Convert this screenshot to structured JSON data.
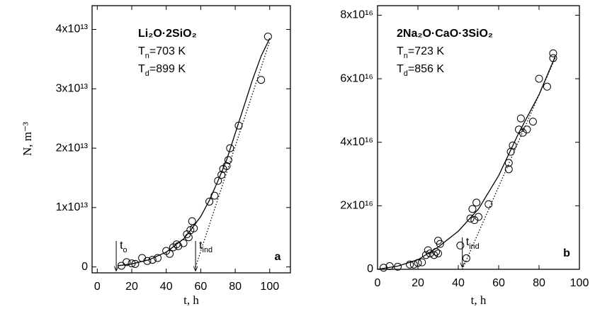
{
  "chart_data": [
    {
      "type": "scatter",
      "y_label": "N, m⁻³",
      "x_label": "t, h",
      "panel": "a",
      "xlim": [
        -3,
        112
      ],
      "ylim": [
        -1000000000000.0,
        44000000000000.0
      ],
      "xticks": [
        0,
        20,
        40,
        60,
        80,
        100
      ],
      "yticks": [
        0,
        {
          "value": 10000000000000.0,
          "label": "1x10¹³"
        },
        {
          "value": 20000000000000.0,
          "label": "2x10¹³"
        },
        {
          "value": 30000000000000.0,
          "label": "3x10¹³"
        },
        {
          "value": 40000000000000.0,
          "label": "4x10¹³"
        }
      ],
      "texts": [
        {
          "parts": [
            {
              "text": "Li₂O·2SiO₂"
            }
          ],
          "bold": true
        },
        {
          "parts": [
            {
              "text": "T"
            },
            {
              "sub": "n"
            },
            {
              "text": "=703 K"
            }
          ]
        },
        {
          "parts": [
            {
              "text": "T"
            },
            {
              "sub": "d"
            },
            {
              "text": "=899 K"
            }
          ]
        }
      ],
      "annotations": [
        {
          "x": 11,
          "parts": [
            {
              "text": "t"
            },
            {
              "sub": "o"
            }
          ]
        },
        {
          "x": 57,
          "parts": [
            {
              "text": "t"
            },
            {
              "sub": "ind"
            }
          ]
        }
      ],
      "series": [
        {
          "type": "scatter",
          "color": "#000000",
          "x": [
            14,
            17,
            20,
            22,
            26,
            29,
            32,
            35,
            40,
            42,
            44,
            46,
            47,
            50,
            52,
            53,
            54,
            55,
            56,
            65,
            68,
            70,
            72,
            73,
            75,
            76,
            77,
            82,
            95,
            99
          ],
          "values": [
            200000000000.0,
            800000000000.0,
            600000000000.0,
            500000000000.0,
            1500000000000.0,
            1000000000000.0,
            1200000000000.0,
            1500000000000.0,
            2700000000000.0,
            2200000000000.0,
            3300000000000.0,
            3800000000000.0,
            3500000000000.0,
            4000000000000.0,
            5500000000000.0,
            5000000000000.0,
            6200000000000.0,
            7700000000000.0,
            6500000000000.0,
            11000000000000.0,
            12000000000000.0,
            14500000000000.0,
            15500000000000.0,
            16500000000000.0,
            17000000000000.0,
            18000000000000.0,
            20000000000000.0,
            23800000000000.0,
            31500000000000.0,
            38800000000000.0
          ]
        },
        {
          "type": "line",
          "color": "#000000",
          "x": [
            12,
            20,
            30,
            40,
            50,
            55,
            60,
            65,
            70,
            75,
            80,
            85,
            90,
            95,
            100
          ],
          "values": [
            200000000000.0,
            500000000000.0,
            1200000000000.0,
            2500000000000.0,
            4700000000000.0,
            6500000000000.0,
            8500000000000.0,
            11200000000000.0,
            14500000000000.0,
            18000000000000.0,
            22500000000000.0,
            27000000000000.0,
            31500000000000.0,
            35500000000000.0,
            38500000000000.0
          ]
        },
        {
          "type": "line",
          "style": "dotted",
          "color": "#000000",
          "x": [
            57,
            100
          ],
          "values": [
            0,
            38000000000000.0
          ]
        }
      ]
    },
    {
      "type": "scatter",
      "x_label": "t, h",
      "panel": "b",
      "xlim": [
        0,
        100
      ],
      "ylim": [
        0,
        8.3e+16
      ],
      "xticks": [
        0,
        20,
        40,
        60,
        80,
        100
      ],
      "yticks": [
        0,
        {
          "value": 2e+16,
          "label": "2x10¹⁶"
        },
        {
          "value": 4e+16,
          "label": "4x10¹⁶"
        },
        {
          "value": 6e+16,
          "label": "6x10¹⁶"
        },
        {
          "value": 8e+16,
          "label": "8x10¹⁶"
        }
      ],
      "texts": [
        {
          "parts": [
            {
              "text": "2Na₂O·CaO·3SiO₂"
            }
          ],
          "bold": true
        },
        {
          "parts": [
            {
              "text": "T"
            },
            {
              "sub": "n"
            },
            {
              "text": "=723 K"
            }
          ]
        },
        {
          "parts": [
            {
              "text": "T"
            },
            {
              "sub": "d"
            },
            {
              "text": "=856 K"
            }
          ]
        }
      ],
      "annotations": [
        {
          "x": 42,
          "parts": [
            {
              "text": "t"
            },
            {
              "sub": "ind"
            }
          ]
        }
      ],
      "series": [
        {
          "type": "scatter",
          "color": "#000000",
          "x": [
            3,
            6,
            10,
            16,
            18,
            20,
            22,
            24,
            25,
            26,
            28,
            29,
            30,
            31,
            30,
            41,
            44,
            46,
            47,
            48,
            49,
            50,
            55,
            65,
            65,
            66,
            67,
            70,
            71,
            72,
            74,
            77,
            80,
            84,
            87,
            87
          ],
          "values": [
            500000000000000.0,
            1000000000000000.0,
            800000000000000.0,
            1500000000000000.0,
            1500000000000000.0,
            2000000000000000.0,
            2200000000000000.0,
            4500000000000000.0,
            6000000000000000.0,
            5000000000000000.0,
            4500000000000000.0,
            5500000000000000.0,
            9000000000000000.0,
            8000000000000000.0,
            5000000000000000.0,
            7500000000000000.0,
            3500000000000000.0,
            1.6e+16,
            1.9e+16,
            1.55e+16,
            2.1e+16,
            1.65e+16,
            2.05e+16,
            3.15e+16,
            3.35e+16,
            3.7e+16,
            3.9e+16,
            4.4e+16,
            4.75e+16,
            4.3e+16,
            4.4e+16,
            4.65e+16,
            6e+16,
            5.75e+16,
            6.65e+16,
            6.8e+16
          ]
        },
        {
          "type": "line",
          "color": "#000000",
          "x": [
            0,
            10,
            20,
            30,
            40,
            50,
            60,
            70,
            80,
            88
          ],
          "values": [
            0,
            1000000000000000.0,
            3000000000000000.0,
            7000000000000000.0,
            1.2e+16,
            1.9e+16,
            2.95e+16,
            4.3e+16,
            5.5e+16,
            6.7e+16
          ]
        },
        {
          "type": "line",
          "style": "dotted",
          "color": "#000000",
          "x": [
            42,
            88
          ],
          "values": [
            0,
            6.65e+16
          ]
        }
      ]
    }
  ]
}
